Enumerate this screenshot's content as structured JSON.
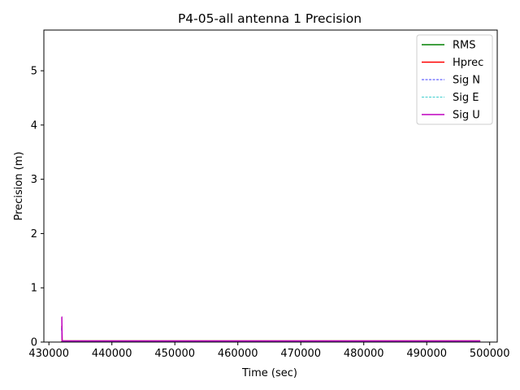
{
  "chart_data": {
    "type": "line",
    "title": "P4-05-all antenna 1 Precision",
    "xlabel": "Time (sec)",
    "ylabel": "Precision (m)",
    "xlim": [
      429200,
      501200
    ],
    "ylim": [
      0,
      5.75
    ],
    "xticks": [
      430000,
      440000,
      450000,
      460000,
      470000,
      480000,
      490000,
      500000
    ],
    "yticks": [
      0,
      1,
      2,
      3,
      4,
      5
    ],
    "legend_position": "top-right",
    "series": [
      {
        "name": "RMS",
        "color": "#008000",
        "dash": "solid",
        "points": [
          [
            432000,
            0.0
          ],
          [
            432100,
            0.02
          ],
          [
            498500,
            0.02
          ]
        ]
      },
      {
        "name": "Hprec",
        "color": "#ff0000",
        "dash": "solid",
        "points": [
          [
            432000,
            0.3
          ],
          [
            432050,
            0.3
          ],
          [
            432100,
            0.02
          ],
          [
            498500,
            0.02
          ]
        ]
      },
      {
        "name": "Sig N",
        "color": "#0000ff",
        "dash": "dashed",
        "points": [
          [
            432000,
            0.25
          ],
          [
            432100,
            0.01
          ],
          [
            498500,
            0.01
          ]
        ]
      },
      {
        "name": "Sig E",
        "color": "#00bfbf",
        "dash": "dashed",
        "points": [
          [
            432000,
            0.28
          ],
          [
            432100,
            0.01
          ],
          [
            498500,
            0.01
          ]
        ]
      },
      {
        "name": "Sig U",
        "color": "#bf00bf",
        "dash": "solid",
        "points": [
          [
            432000,
            0.46
          ],
          [
            432050,
            0.46
          ],
          [
            432100,
            0.02
          ],
          [
            498500,
            0.02
          ]
        ]
      }
    ]
  }
}
